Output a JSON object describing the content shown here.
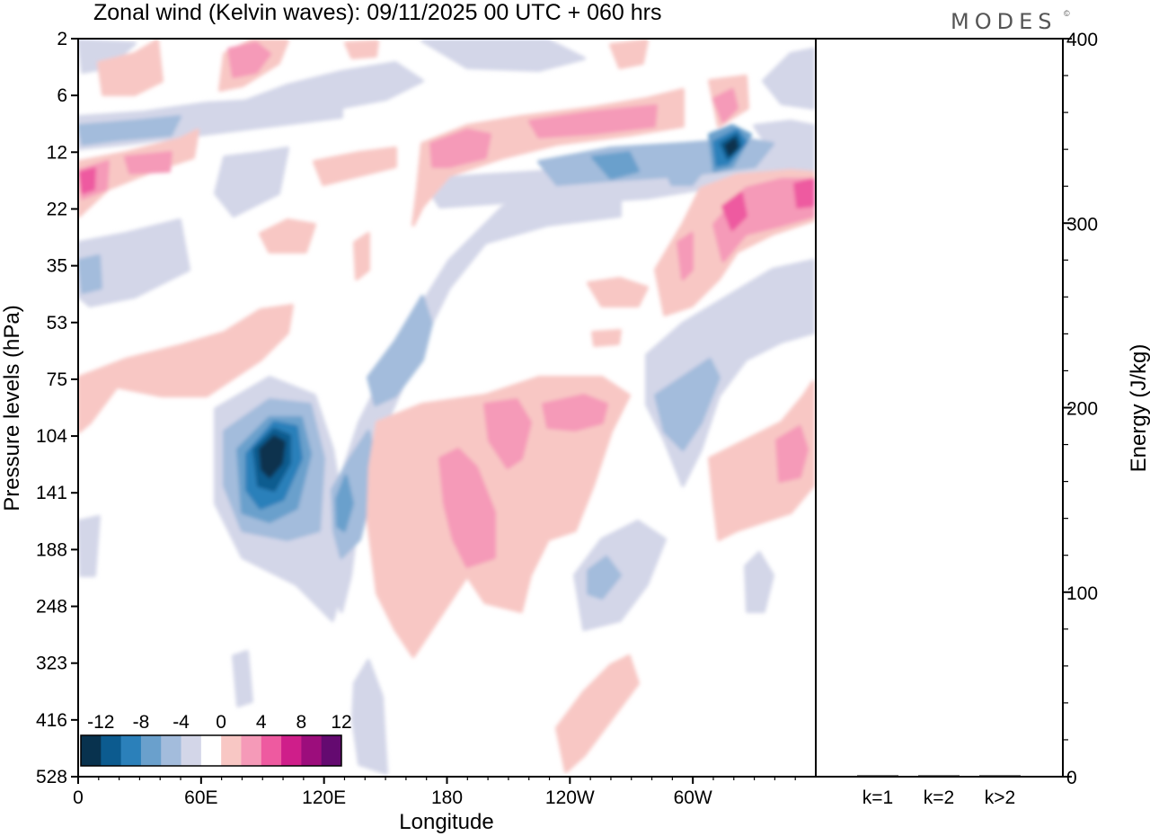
{
  "title": "Zonal wind (Kelvin waves):  09/11/2025  00 UTC  + 060 hrs",
  "logo": "MODES",
  "colors": {
    "scale": [
      "#08324e",
      "#0c5b8f",
      "#2b80ba",
      "#6aa0cc",
      "#a3bcdc",
      "#d3d6e8",
      "#ffffff",
      "#f8c7c4",
      "#f59ab8",
      "#ee5aa0",
      "#cf1e8a",
      "#9c0d7c",
      "#640a70"
    ]
  },
  "chart_data": [
    {
      "type": "heatmap",
      "title": "Zonal wind (Kelvin waves):  09/11/2025  00 UTC  + 060 hrs",
      "xlabel": "Longitude",
      "ylabel": "Pressure levels (hPa)",
      "x_ticks": [
        "0",
        "60E",
        "120E",
        "180",
        "120W",
        "60W"
      ],
      "x_tick_degrees": [
        0,
        60,
        120,
        180,
        240,
        300
      ],
      "xlim": [
        0,
        360
      ],
      "y_ticks": [
        "2",
        "6",
        "12",
        "22",
        "35",
        "53",
        "75",
        "104",
        "141",
        "188",
        "248",
        "323",
        "416",
        "528"
      ],
      "colorbar_labels": [
        "-12",
        "-8",
        "-4",
        "0",
        "4",
        "8",
        "12"
      ],
      "colorbar_levels": [
        -14,
        -12,
        -10,
        -8,
        -6,
        -4,
        -2,
        2,
        4,
        6,
        8,
        10,
        12,
        14
      ],
      "features": [
        {
          "lon": 95,
          "level": 117,
          "value": -14
        },
        {
          "lon": 128,
          "level": 130,
          "value": -8
        },
        {
          "lon": 145,
          "level": 60,
          "value": -8
        },
        {
          "lon": 200,
          "level": 170,
          "value": 6
        },
        {
          "lon": 235,
          "level": 95,
          "value": 6
        },
        {
          "lon": 265,
          "level": 95,
          "value": 6
        },
        {
          "lon": 290,
          "level": 210,
          "value": -6
        },
        {
          "lon": 320,
          "level": 12,
          "value": -12
        },
        {
          "lon": 325,
          "level": 22,
          "value": 8
        },
        {
          "lon": 5,
          "level": 15,
          "value": 8
        },
        {
          "lon": 75,
          "level": 3,
          "value": 6
        },
        {
          "lon": 350,
          "level": 120,
          "value": 6
        }
      ]
    },
    {
      "type": "bar",
      "ylabel": "Energy (J/kg)",
      "categories": [
        "k=1",
        "k=2",
        "k>2"
      ],
      "values": [
        0,
        0,
        0
      ],
      "ylim": [
        0,
        400
      ],
      "y_ticks": [
        0,
        100,
        200,
        300,
        400
      ]
    }
  ]
}
